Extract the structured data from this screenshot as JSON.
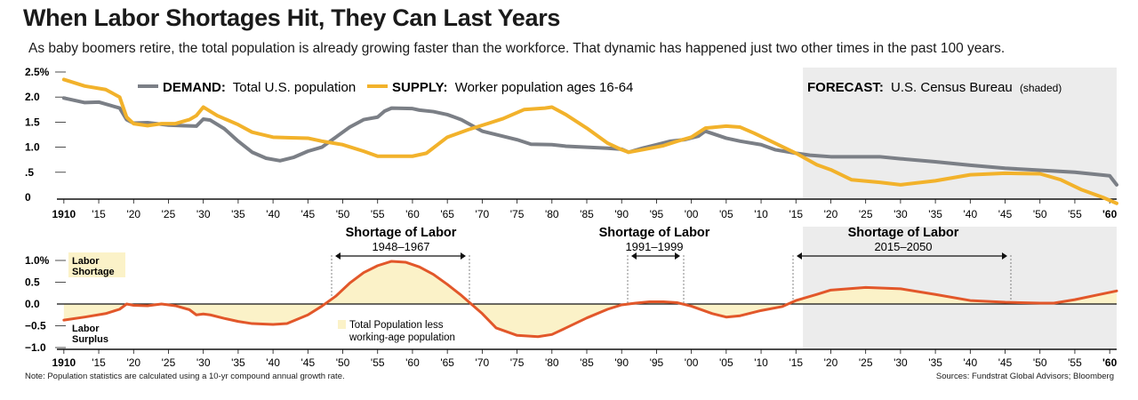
{
  "title": "When Labor Shortages Hit, They Can Last Years",
  "subtitle": "As baby boomers retire, the total population is already growing faster than the workforce. That dynamic has happened just two other times in the past 100 years.",
  "note": "Note: Population statistics are calculated using a 10-yr compound annual growth rate.",
  "sources": "Sources: Fundstrat Global Advisors; Bloomberg",
  "colors": {
    "demand": "#7b7f86",
    "supply": "#f2b22b",
    "gap": "#e2572a",
    "fill": "#fbf2c8",
    "forecast": "#ececec"
  },
  "legend": {
    "demand_bold": "DEMAND:",
    "demand_text": "Total U.S. population",
    "supply_bold": "SUPPLY:",
    "supply_text": "Worker population ages 16-64",
    "forecast_bold": "FORECAST:",
    "forecast_text": "U.S. Census Bureau",
    "forecast_small": "(shaded)"
  },
  "x_tick_labels": [
    "1910",
    "'15",
    "'20",
    "'25",
    "'30",
    "'35",
    "'40",
    "'45",
    "'50",
    "'55",
    "'60",
    "'65",
    "'70",
    "'75",
    "'80",
    "'85",
    "'90",
    "'95",
    "'00",
    "'05",
    "'10",
    "'15",
    "'20",
    "'25",
    "'30",
    "'35",
    "'40",
    "'45",
    "'50",
    "'55",
    "'60"
  ],
  "periods": [
    {
      "title": "Shortage of Labor",
      "range": "1948–1967"
    },
    {
      "title": "Shortage of Labor",
      "range": "1991–1999"
    },
    {
      "title": "Shortage of Labor",
      "range": "2015–2050"
    }
  ],
  "annotations": {
    "shortage_line1": "Labor",
    "shortage_line2": "Shortage",
    "surplus_line1": "Labor",
    "surplus_line2": "Surplus",
    "fill_legend_line1": "Total Population less",
    "fill_legend_line2": "working-age population"
  },
  "chart_data": [
    {
      "type": "line",
      "xlim": [
        1909,
        2061
      ],
      "ylim": [
        0,
        2.5
      ],
      "y_tick_labels": [
        "2.5%",
        "2.0",
        "1.5",
        "1.0",
        ".5",
        "0"
      ],
      "forecast_start": 2016,
      "series": [
        {
          "name": "DEMAND: Total U.S. population",
          "x": [
            1910,
            1913,
            1915,
            1918,
            1919,
            1920,
            1922,
            1925,
            1927,
            1929,
            1930,
            1931,
            1933,
            1935,
            1937,
            1939,
            1941,
            1943,
            1945,
            1947,
            1949,
            1951,
            1953,
            1955,
            1956,
            1957,
            1960,
            1961,
            1963,
            1965,
            1967,
            1970,
            1975,
            1977,
            1980,
            1982,
            1985,
            1988,
            1990,
            1991,
            1993,
            1995,
            1997,
            1999,
            2001,
            2002,
            2005,
            2007,
            2010,
            2012,
            2015,
            2017,
            2020,
            2025,
            2027,
            2030,
            2035,
            2040,
            2045,
            2050,
            2055,
            2060,
            2061
          ],
          "y": [
            1.98,
            1.89,
            1.9,
            1.78,
            1.55,
            1.48,
            1.49,
            1.44,
            1.43,
            1.42,
            1.56,
            1.54,
            1.37,
            1.12,
            0.9,
            0.78,
            0.73,
            0.8,
            0.92,
            1.0,
            1.2,
            1.4,
            1.55,
            1.6,
            1.72,
            1.78,
            1.77,
            1.74,
            1.71,
            1.65,
            1.55,
            1.32,
            1.15,
            1.06,
            1.05,
            1.02,
            1.0,
            0.98,
            0.96,
            0.9,
            0.98,
            1.05,
            1.12,
            1.15,
            1.22,
            1.32,
            1.18,
            1.12,
            1.05,
            0.95,
            0.88,
            0.84,
            0.81,
            0.81,
            0.81,
            0.77,
            0.71,
            0.64,
            0.58,
            0.54,
            0.5,
            0.43,
            0.25
          ]
        },
        {
          "name": "SUPPLY: Worker population ages 16-64",
          "x": [
            1910,
            1913,
            1916,
            1918,
            1919,
            1920,
            1922,
            1924,
            1926,
            1928,
            1929,
            1930,
            1932,
            1935,
            1937,
            1940,
            1942,
            1945,
            1947,
            1950,
            1953,
            1955,
            1957,
            1960,
            1962,
            1965,
            1968,
            1971,
            1973,
            1976,
            1979,
            1980,
            1982,
            1985,
            1988,
            1990,
            1991,
            1993,
            1996,
            1998,
            2000,
            2002,
            2005,
            2007,
            2009,
            2012,
            2015,
            2018,
            2020,
            2023,
            2027,
            2030,
            2035,
            2040,
            2045,
            2050,
            2053,
            2056,
            2059,
            2061
          ],
          "y": [
            2.35,
            2.22,
            2.15,
            2.0,
            1.6,
            1.47,
            1.43,
            1.47,
            1.47,
            1.55,
            1.63,
            1.8,
            1.63,
            1.45,
            1.3,
            1.2,
            1.19,
            1.18,
            1.12,
            1.05,
            0.92,
            0.82,
            0.82,
            0.82,
            0.88,
            1.2,
            1.35,
            1.48,
            1.57,
            1.75,
            1.78,
            1.8,
            1.65,
            1.38,
            1.08,
            0.95,
            0.9,
            0.95,
            1.03,
            1.12,
            1.2,
            1.38,
            1.42,
            1.4,
            1.28,
            1.08,
            0.88,
            0.65,
            0.55,
            0.35,
            0.3,
            0.25,
            0.33,
            0.45,
            0.48,
            0.47,
            0.35,
            0.15,
            0.0,
            -0.12
          ]
        }
      ]
    },
    {
      "type": "area",
      "xlim": [
        1909,
        2061
      ],
      "ylim": [
        -1.0,
        1.0
      ],
      "y_tick_labels": [
        "1.0%",
        "0.5",
        "0.0",
        "−0.5",
        "−1.0"
      ],
      "forecast_start": 2016,
      "series": [
        {
          "name": "Total Population less working-age population",
          "x": [
            1910,
            1913,
            1916,
            1918,
            1919,
            1920,
            1922,
            1924,
            1926,
            1928,
            1929,
            1930,
            1931,
            1933,
            1935,
            1937,
            1940,
            1942,
            1945,
            1947,
            1949,
            1951,
            1953,
            1955,
            1957,
            1959,
            1961,
            1963,
            1965,
            1967,
            1970,
            1972,
            1975,
            1978,
            1980,
            1982,
            1985,
            1988,
            1990,
            1992,
            1994,
            1996,
            1998,
            2000,
            2003,
            2005,
            2007,
            2010,
            2013,
            2015,
            2018,
            2020,
            2025,
            2030,
            2035,
            2040,
            2045,
            2050,
            2052,
            2055,
            2058,
            2061
          ],
          "y": [
            -0.37,
            -0.3,
            -0.22,
            -0.12,
            0.0,
            -0.03,
            -0.04,
            0.0,
            -0.04,
            -0.13,
            -0.25,
            -0.23,
            -0.25,
            -0.33,
            -0.4,
            -0.45,
            -0.47,
            -0.45,
            -0.25,
            -0.05,
            0.18,
            0.48,
            0.72,
            0.88,
            0.98,
            0.96,
            0.85,
            0.68,
            0.45,
            0.2,
            -0.22,
            -0.55,
            -0.72,
            -0.75,
            -0.7,
            -0.55,
            -0.32,
            -0.12,
            -0.02,
            0.02,
            0.05,
            0.05,
            0.03,
            -0.05,
            -0.22,
            -0.3,
            -0.27,
            -0.15,
            -0.06,
            0.08,
            0.22,
            0.32,
            0.38,
            0.35,
            0.22,
            0.08,
            0.04,
            0.02,
            0.02,
            0.1,
            0.2,
            0.3
          ]
        }
      ]
    }
  ]
}
